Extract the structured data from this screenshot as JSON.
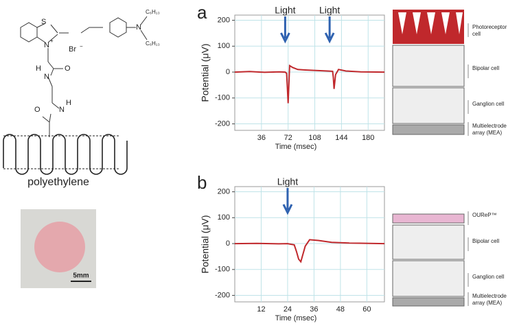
{
  "molecule_labels": [
    "S",
    "N",
    "+",
    "Br",
    "−",
    "N",
    "C₆H₁₃",
    "C₆H₁₃",
    "H",
    "N",
    "O",
    "O",
    "N",
    "H"
  ],
  "polymer_label": "polyethylene",
  "scale_bar": "5mm",
  "panel_labels": [
    "a",
    "b"
  ],
  "retina_a": {
    "labels": [
      [
        "Photoreceptor",
        "cell"
      ],
      [
        "Bipolar cell"
      ],
      [
        "Ganglion cell"
      ],
      [
        "Multielectrode",
        "array (MEA)"
      ]
    ]
  },
  "retina_b": {
    "labels": [
      [
        "OUReP™"
      ],
      [
        "Bipolar cell"
      ],
      [
        "Ganglion cell"
      ],
      [
        "Multielectrode",
        "array (MEA)"
      ]
    ]
  },
  "chart_data": [
    {
      "type": "line",
      "xlabel": "Time (msec)",
      "ylabel": "Potential (μV)",
      "x": [
        0,
        20,
        40,
        60,
        68,
        70,
        71,
        72,
        74,
        78,
        85,
        95,
        110,
        125,
        132,
        133,
        134,
        136,
        140,
        150,
        170,
        202
      ],
      "series": [
        {
          "color": "#c0282c",
          "values": [
            0,
            2,
            -1,
            1,
            0,
            -5,
            -60,
            -120,
            25,
            18,
            10,
            8,
            6,
            4,
            3,
            -20,
            -65,
            -10,
            10,
            4,
            1,
            0
          ]
        }
      ],
      "xlim": [
        0,
        202
      ],
      "ylim": [
        -225,
        220
      ],
      "xticks": [
        36,
        72,
        108,
        144,
        180
      ],
      "yticks": [
        -200,
        -100,
        0,
        100,
        200
      ],
      "grid": true,
      "annotations": [
        {
          "text": "Light",
          "x": 68
        },
        {
          "text": "Light",
          "x": 128
        }
      ]
    },
    {
      "type": "line",
      "xlabel": "Time (msec)",
      "ylabel": "Potential (μV)",
      "x": [
        0,
        10,
        20,
        24,
        27,
        28,
        29,
        30,
        32,
        34,
        38,
        44,
        52,
        68
      ],
      "series": [
        {
          "color": "#c0282c",
          "values": [
            0,
            1,
            -1,
            0,
            -5,
            -30,
            -60,
            -70,
            -10,
            15,
            12,
            5,
            2,
            0
          ]
        }
      ],
      "xlim": [
        0,
        68
      ],
      "ylim": [
        -225,
        220
      ],
      "xticks": [
        12,
        24,
        36,
        48,
        60
      ],
      "yticks": [
        -200,
        -100,
        0,
        100,
        200
      ],
      "grid": true,
      "annotations": [
        {
          "text": "Light",
          "x": 24
        }
      ]
    }
  ]
}
